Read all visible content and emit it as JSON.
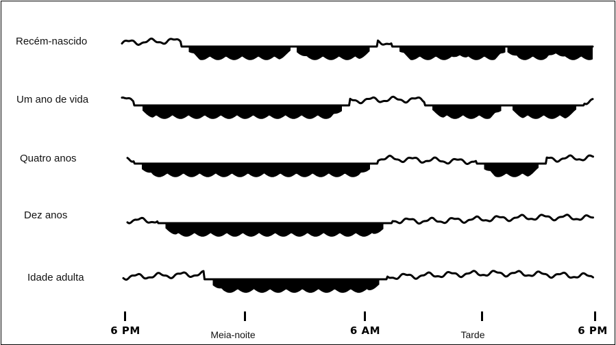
{
  "rows": [
    {
      "label": "Recém-nascido",
      "sleep_periods": [
        [
          0.16,
          0.33
        ],
        [
          0.39,
          0.5
        ],
        [
          0.61,
          0.7
        ],
        [
          0.73,
          0.79
        ],
        [
          0.84,
          0.9
        ],
        [
          0.94,
          1.0
        ]
      ]
    },
    {
      "label": "Um ano de vida",
      "sleep_periods": [
        [
          0.06,
          0.44
        ],
        [
          0.68,
          0.78
        ],
        [
          0.85,
          0.94
        ]
      ]
    },
    {
      "label": "Quatro anos",
      "sleep_periods": [
        [
          0.06,
          0.5
        ],
        [
          0.79,
          0.86
        ]
      ]
    },
    {
      "label": "Dez anos",
      "sleep_periods": [
        [
          0.11,
          0.53
        ]
      ]
    },
    {
      "label": "Idade adulta",
      "sleep_periods": [
        [
          0.21,
          0.52
        ]
      ]
    }
  ],
  "x_axis": {
    "ticks": [
      {
        "label": "6 PM",
        "style": "bold"
      },
      {
        "label": "Meia-noite",
        "style": "plain"
      },
      {
        "label": "6 AM",
        "style": "bold"
      },
      {
        "label": "Tarde",
        "style": "plain"
      },
      {
        "label": "6 PM",
        "style": "bold"
      }
    ]
  },
  "colors": {
    "line": "#000000",
    "fill": "#000000",
    "background": "#ffffff"
  }
}
